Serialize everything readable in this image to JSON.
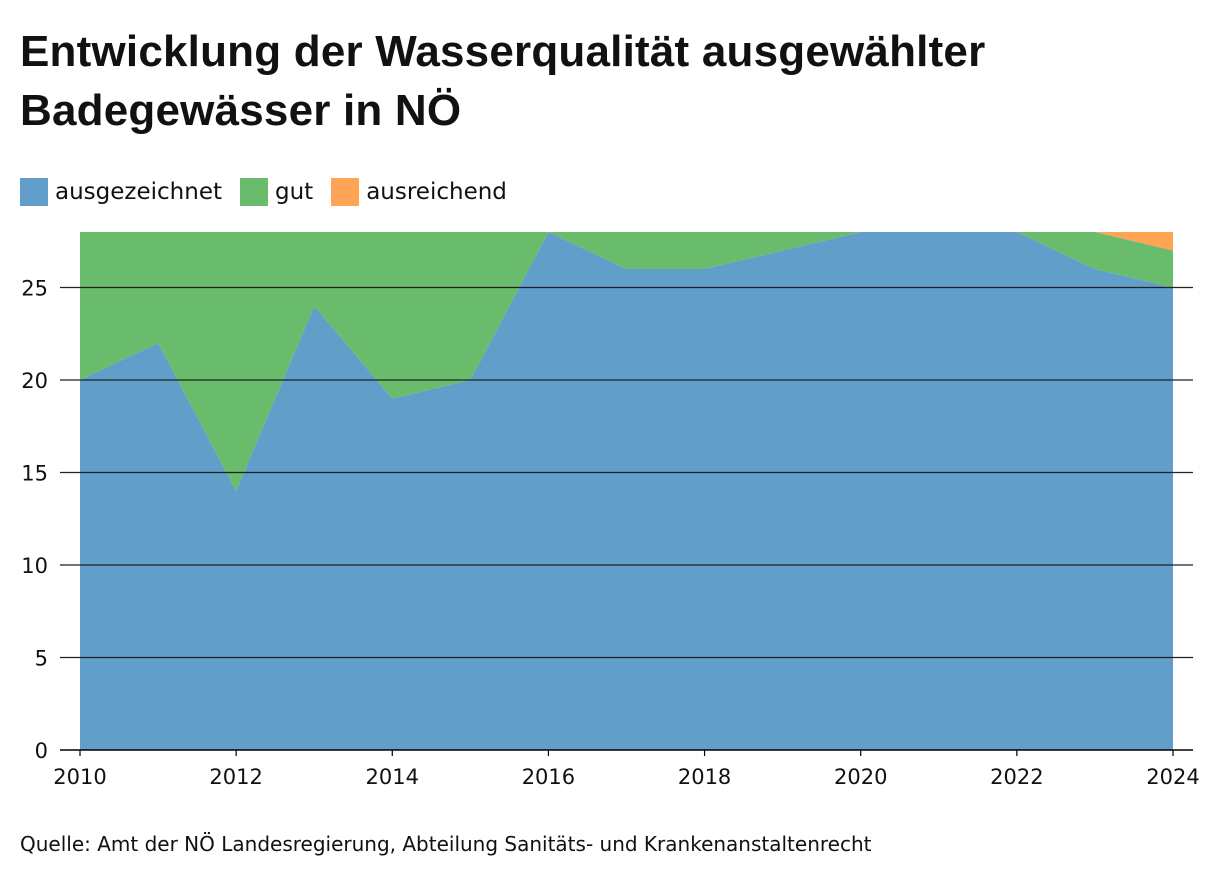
{
  "chart_data": {
    "type": "area",
    "stacked": true,
    "title": "Entwicklung der Wasserqualität ausgewählter Badegewässer in NÖ",
    "x": [
      2010,
      2011,
      2012,
      2013,
      2014,
      2015,
      2016,
      2017,
      2018,
      2019,
      2020,
      2021,
      2022,
      2023,
      2024
    ],
    "x_tick_labels": [
      "2010",
      "2012",
      "2014",
      "2016",
      "2018",
      "2020",
      "2022",
      "2024"
    ],
    "y_tick_labels": [
      "0",
      "5",
      "10",
      "15",
      "20",
      "25"
    ],
    "series": [
      {
        "name": "ausgezeichnet",
        "color": "#619ec9",
        "values": [
          20,
          22,
          14,
          24,
          19,
          20,
          28,
          26,
          26,
          27,
          28,
          28,
          28,
          26,
          25
        ]
      },
      {
        "name": "gut",
        "color": "#69bc6b",
        "values": [
          8,
          6,
          14,
          4,
          9,
          8,
          0,
          2,
          2,
          1,
          0,
          0,
          0,
          2,
          2
        ]
      },
      {
        "name": "ausreichend",
        "color": "#ffa354",
        "values": [
          0,
          0,
          0,
          0,
          0,
          0,
          0,
          0,
          0,
          0,
          0,
          0,
          0,
          0,
          1
        ]
      }
    ],
    "xlim": [
      2010,
      2024
    ],
    "ylim": [
      0,
      28
    ],
    "xlabel": "",
    "ylabel": "",
    "grid": "horizontal",
    "legend_position": "top-left"
  },
  "source": "Quelle: Amt der NÖ Landesregierung, Abteilung Sanitäts- und Krankenanstaltenrecht"
}
